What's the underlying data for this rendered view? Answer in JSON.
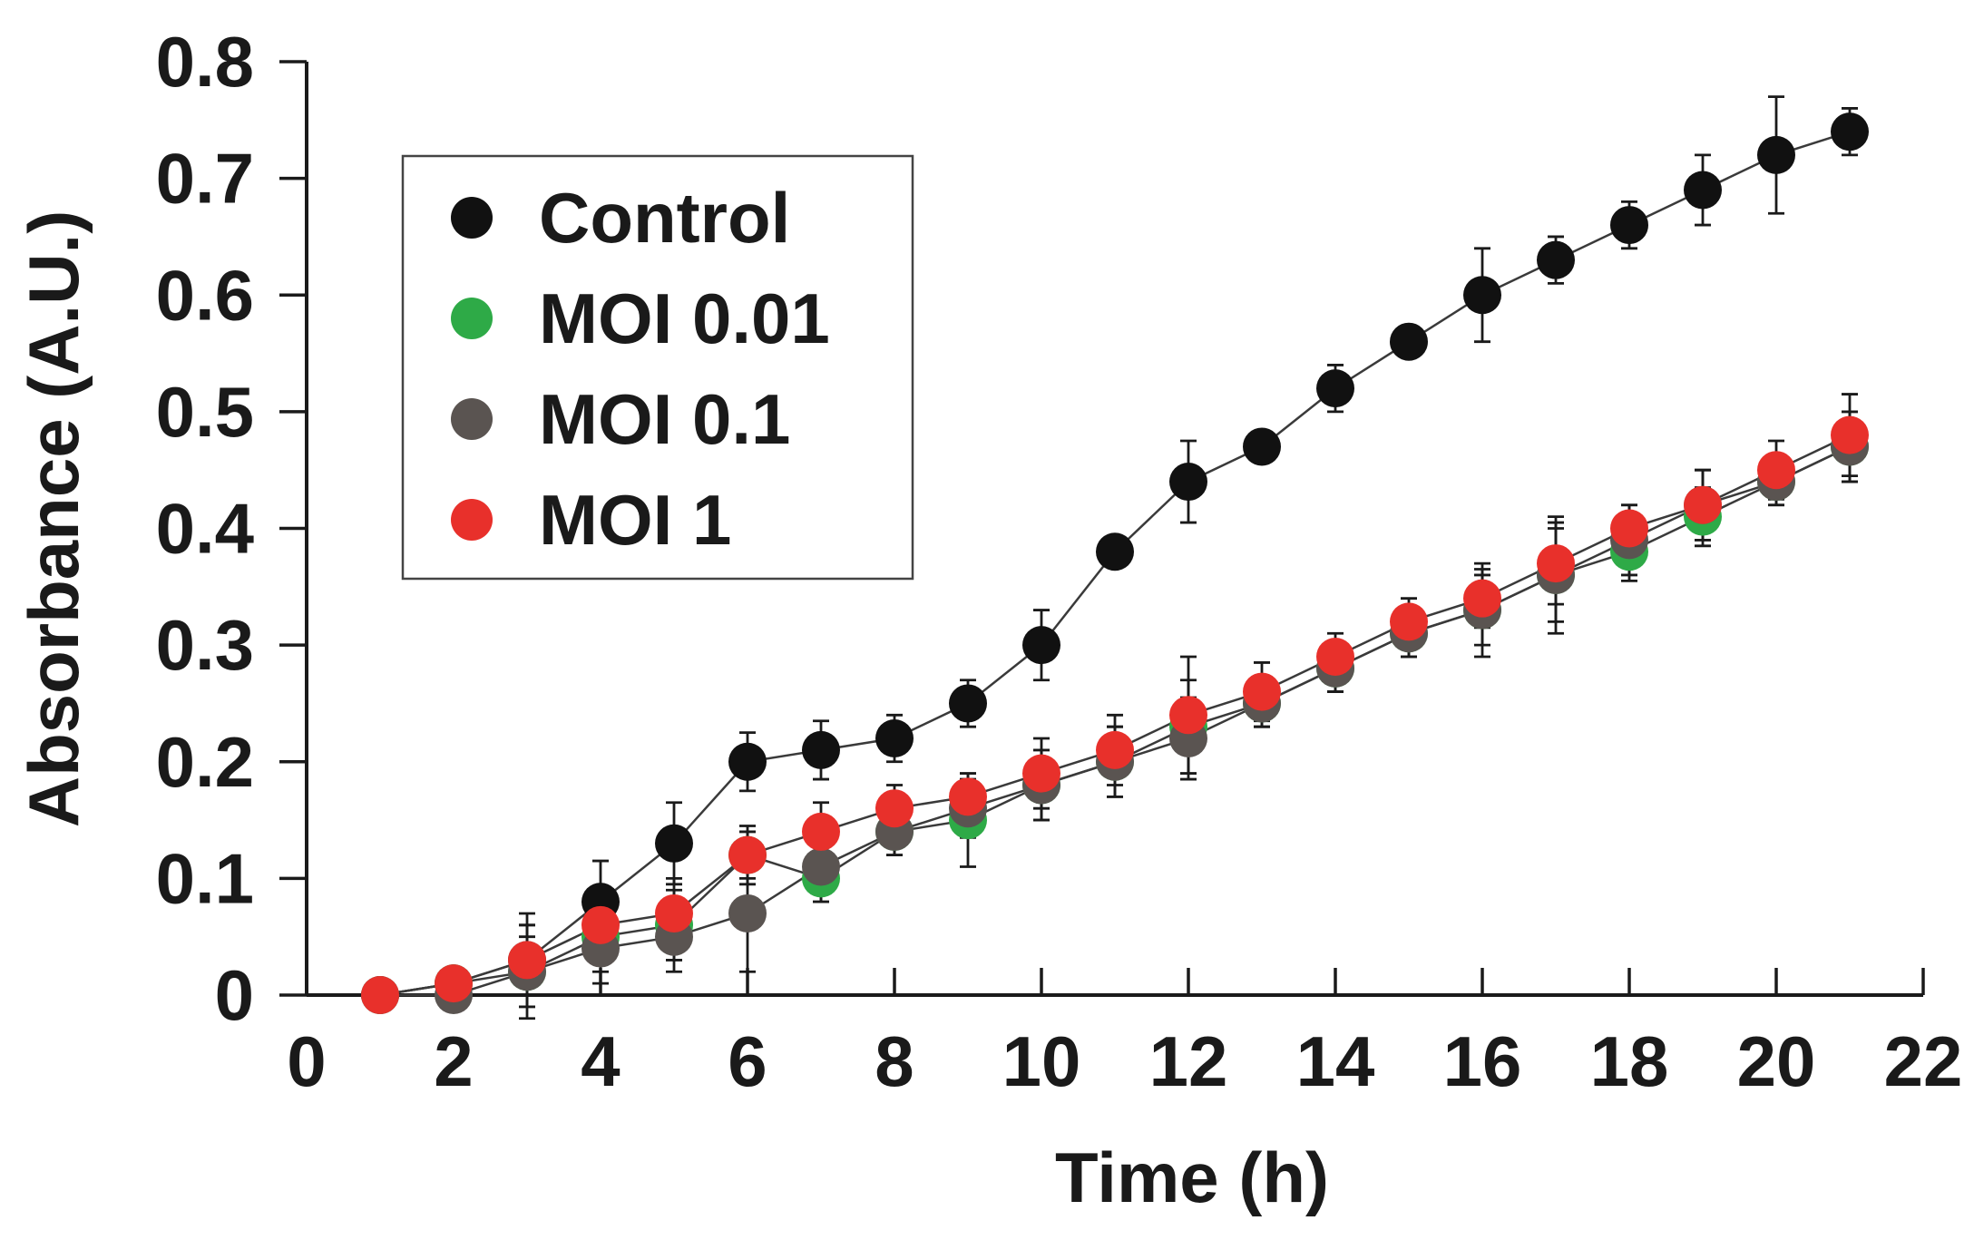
{
  "chart_data": {
    "type": "scatter",
    "title": "",
    "xlabel": "Time (h)",
    "ylabel": "Absorbance (A.U.)",
    "xlim": [
      0,
      22
    ],
    "ylim": [
      0,
      0.8
    ],
    "xticks": [
      0,
      2,
      4,
      6,
      8,
      10,
      12,
      14,
      16,
      18,
      20,
      22
    ],
    "xtick_labels": [
      "0",
      "2",
      "4",
      "6",
      "8",
      "10",
      "12",
      "14",
      "16",
      "18",
      "20",
      "22"
    ],
    "yticks": [
      0,
      0.1,
      0.2,
      0.3,
      0.4,
      0.5,
      0.6,
      0.7,
      0.8
    ],
    "ytick_labels": [
      "0",
      "0.1",
      "0.2",
      "0.3",
      "0.4",
      "0.5",
      "0.6",
      "0.7",
      "0.8"
    ],
    "grid": false,
    "legend_position": "top-left",
    "x": [
      1,
      2,
      3,
      4,
      5,
      6,
      7,
      8,
      9,
      10,
      11,
      12,
      13,
      14,
      15,
      16,
      17,
      18,
      19,
      20,
      21
    ],
    "series": [
      {
        "name": "Control",
        "color": "#111111",
        "values": [
          0,
          0.01,
          0.03,
          0.08,
          0.13,
          0.2,
          0.21,
          0.22,
          0.25,
          0.3,
          0.38,
          0.44,
          0.47,
          0.52,
          0.56,
          0.6,
          0.63,
          0.66,
          0.69,
          0.72,
          0.74
        ],
        "errors": [
          0,
          0.005,
          0.04,
          0.035,
          0.035,
          0.025,
          0.025,
          0.02,
          0.02,
          0.03,
          0.01,
          0.035,
          0.01,
          0.02,
          0.01,
          0.04,
          0.02,
          0.02,
          0.03,
          0.05,
          0.02
        ]
      },
      {
        "name": "MOI 0.01",
        "color": "#2eaa47",
        "values": [
          0,
          0.01,
          0.02,
          0.05,
          0.06,
          0.12,
          0.1,
          0.14,
          0.15,
          0.18,
          0.2,
          0.23,
          0.25,
          0.28,
          0.31,
          0.33,
          0.36,
          0.38,
          0.41,
          0.44,
          0.47
        ],
        "errors": [
          0,
          0.005,
          0.03,
          0.03,
          0.03,
          0.02,
          0.02,
          0.02,
          0.04,
          0.03,
          0.03,
          0.04,
          0.02,
          0.02,
          0.02,
          0.03,
          0.04,
          0.025,
          0.025,
          0.02,
          0.03
        ]
      },
      {
        "name": "MOI 0.1",
        "color": "#5a5451",
        "values": [
          0,
          0,
          0.02,
          0.04,
          0.05,
          0.07,
          0.11,
          0.14,
          0.16,
          0.18,
          0.2,
          0.22,
          0.25,
          0.28,
          0.31,
          0.33,
          0.36,
          0.39,
          0.42,
          0.44,
          0.47
        ],
        "errors": [
          0,
          0.005,
          0.04,
          0.03,
          0.03,
          0.05,
          0.03,
          0.02,
          0.025,
          0.03,
          0.03,
          0.035,
          0.02,
          0.02,
          0.02,
          0.04,
          0.05,
          0.03,
          0.03,
          0.02,
          0.03
        ]
      },
      {
        "name": "MOI 1",
        "color": "#e8302b",
        "values": [
          0,
          0.01,
          0.03,
          0.06,
          0.07,
          0.12,
          0.14,
          0.16,
          0.17,
          0.19,
          0.21,
          0.24,
          0.26,
          0.29,
          0.32,
          0.34,
          0.37,
          0.4,
          0.42,
          0.45,
          0.48
        ],
        "errors": [
          0,
          0.005,
          0.03,
          0.03,
          0.03,
          0.025,
          0.025,
          0.02,
          0.02,
          0.03,
          0.03,
          0.05,
          0.025,
          0.02,
          0.02,
          0.025,
          0.035,
          0.02,
          0.03,
          0.025,
          0.035
        ]
      }
    ]
  }
}
